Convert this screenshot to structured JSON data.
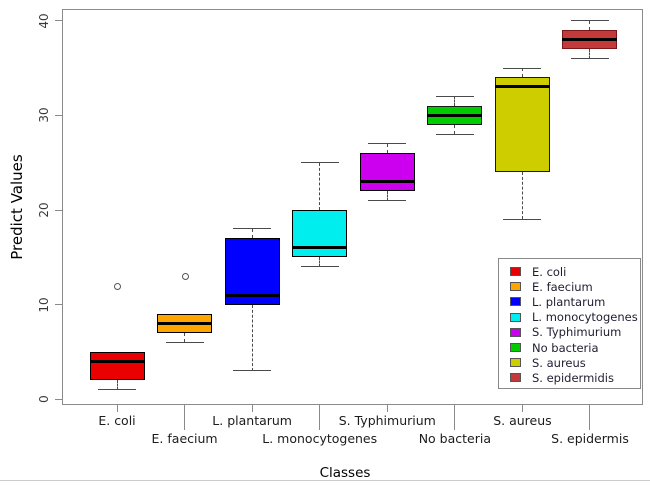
{
  "chart_data": {
    "type": "boxplot",
    "title": "",
    "xlabel": "Classes",
    "ylabel": "Predict Values",
    "ylim": [
      0,
      41
    ],
    "y_ticks": [
      0,
      10,
      20,
      30,
      40
    ],
    "grid": false,
    "legend_position": "bottom-right",
    "categories": [
      "E. coli",
      "E. faecium",
      "L. plantarum",
      "L. monocytogenes",
      "S. Typhimurium",
      "No bacteria",
      "S. aureus",
      "S. epidermis"
    ],
    "series": [
      {
        "label": "E. coli",
        "color": "#ea0000",
        "border": "#000000",
        "whisker_low": 1,
        "q1": 2,
        "median": 4,
        "q3": 5,
        "whisker_high": 5,
        "outliers": [
          12
        ]
      },
      {
        "label": "E. faecium",
        "color": "#ffa500",
        "border": "#000000",
        "whisker_low": 6,
        "q1": 7,
        "median": 8,
        "q3": 9,
        "whisker_high": 9,
        "outliers": [
          13
        ]
      },
      {
        "label": "L. plantarum",
        "color": "#0000ff",
        "border": "#000000",
        "whisker_low": 3,
        "q1": 10,
        "median": 11,
        "q3": 17,
        "whisker_high": 18,
        "outliers": []
      },
      {
        "label": "L. monocytogenes",
        "color": "#00eeee",
        "border": "#000000",
        "whisker_low": 14,
        "q1": 15,
        "median": 16,
        "q3": 20,
        "whisker_high": 25,
        "outliers": []
      },
      {
        "label": "S. Typhimurium",
        "color": "#cc00ee",
        "border": "#000000",
        "whisker_low": 21,
        "q1": 22,
        "median": 23,
        "q3": 26,
        "whisker_high": 27,
        "outliers": []
      },
      {
        "label": "No bacteria",
        "color": "#00cc00",
        "border": "#1a1a1a",
        "whisker_low": 28,
        "q1": 29,
        "median": 30,
        "q3": 31,
        "whisker_high": 32,
        "outliers": []
      },
      {
        "label": "S. aureus",
        "color": "#cdcd00",
        "border": "#1a1a1a",
        "whisker_low": 19,
        "q1": 24,
        "median": 33,
        "q3": 34,
        "whisker_high": 35,
        "outliers": []
      },
      {
        "label": "S. epidermis",
        "color": "#c33a3a",
        "border": "#7d1616",
        "whisker_low": 36,
        "q1": 37,
        "median": 38,
        "q3": 39,
        "whisker_high": 40,
        "outliers": []
      }
    ],
    "legend": [
      {
        "label": "E. coli",
        "color": "#ea0000"
      },
      {
        "label": "E. faecium",
        "color": "#ffa500"
      },
      {
        "label": "L. plantarum",
        "color": "#0000ff"
      },
      {
        "label": "L. monocytogenes",
        "color": "#00eeee"
      },
      {
        "label": "S. Typhimurium",
        "color": "#cc00ee"
      },
      {
        "label": "No bacteria",
        "color": "#00cc00"
      },
      {
        "label": "S. aureus",
        "color": "#cdcd00"
      },
      {
        "label": "S. epidermidis",
        "color": "#c33a3a"
      }
    ]
  },
  "colors": {
    "axis": "#8a8a8a",
    "tick_label": "#3a3a3a",
    "whisker": "#4a4a4a",
    "median": "#000000",
    "legend_text": "#1e1e30",
    "window_edge": "#cccccc"
  }
}
